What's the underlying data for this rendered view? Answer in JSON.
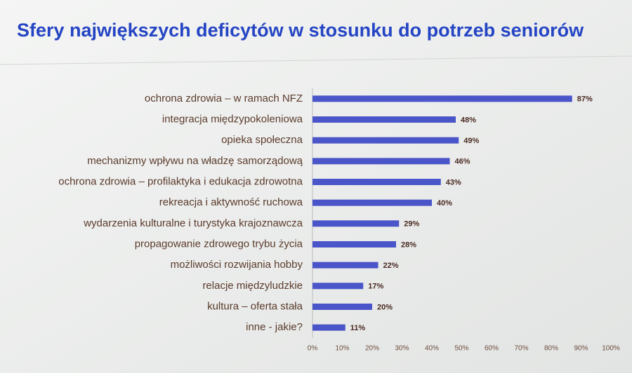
{
  "chart_data": {
    "type": "bar",
    "orientation": "horizontal",
    "title": "Sfery największych deficytów w stosunku do potrzeb seniorów",
    "categories": [
      "ochrona zdrowia – w ramach NFZ",
      "integracja międzypokoleniowa",
      "opieka społeczna",
      "mechanizmy wpływu na władzę samorządową",
      "ochrona zdrowia – profilaktyka i edukacja zdrowotna",
      "rekreacja i aktywność ruchowa",
      "wydarzenia kulturalne i turystyka krajoznawcza",
      "propagowanie zdrowego trybu życia",
      "możliwości rozwijania hobby",
      "relacje międzyludzkie",
      "kultura – oferta stała",
      "inne - jakie?"
    ],
    "values": [
      87,
      48,
      49,
      46,
      43,
      40,
      29,
      28,
      22,
      17,
      20,
      11
    ],
    "value_labels": [
      "87%",
      "48%",
      "49%",
      "46%",
      "43%",
      "40%",
      "29%",
      "28%",
      "22%",
      "17%",
      "20%",
      "11%"
    ],
    "color": "#4a55c9",
    "xlim": [
      0,
      100
    ],
    "xticks": [
      {
        "value": 0,
        "label": "0%"
      },
      {
        "value": 10,
        "label": "10%"
      },
      {
        "value": 20,
        "label": "20%"
      },
      {
        "value": 30,
        "label": "30%"
      },
      {
        "value": 40,
        "label": "40%"
      },
      {
        "value": 50,
        "label": "50%"
      },
      {
        "value": 60,
        "label": "60%"
      },
      {
        "value": 70,
        "label": "70%"
      },
      {
        "value": 80,
        "label": "80%"
      },
      {
        "value": 90,
        "label": "90%"
      },
      {
        "value": 100,
        "label": "100%"
      }
    ],
    "grid": false
  }
}
